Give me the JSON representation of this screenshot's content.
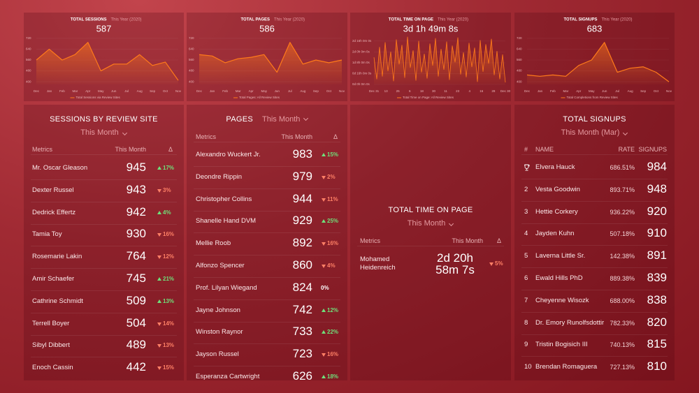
{
  "charts": [
    {
      "title": "TOTAL SESSIONS",
      "subtitle": "This Year (2020)",
      "value": 587,
      "color": "#ff7a1a",
      "ylim": [
        380,
        740
      ],
      "yticks": [
        400,
        480,
        560,
        640,
        720
      ],
      "xlabels": [
        "Dec",
        "Jan",
        "Feb",
        "Mar",
        "Apr",
        "May",
        "Jun",
        "Jul",
        "Aug",
        "Sep",
        "Oct",
        "Nov"
      ],
      "values": [
        560,
        640,
        560,
        600,
        690,
        480,
        530,
        530,
        600,
        520,
        545,
        410
      ],
      "legend": "Total Sessions via Review Sites"
    },
    {
      "title": "TOTAL PAGES",
      "subtitle": "This Year (2020)",
      "value": 586,
      "color": "#ff7a1a",
      "ylim": [
        380,
        740
      ],
      "yticks": [
        400,
        480,
        560,
        640,
        720
      ],
      "xlabels": [
        "Dec",
        "Jan",
        "Feb",
        "Mar",
        "Apr",
        "May",
        "Jun",
        "Jul",
        "Aug",
        "Sep",
        "Oct",
        "Nov"
      ],
      "values": [
        600,
        590,
        540,
        570,
        580,
        600,
        470,
        690,
        530,
        560,
        540,
        560
      ],
      "legend": "Total Pages: All Review Sites"
    },
    {
      "title": "TOTAL TIME ON PAGE",
      "subtitle": "This Year (2020)",
      "value": "3d 1h 49m 8s",
      "color": "#ff7a1a",
      "ylim": [
        0,
        72
      ],
      "yticks": [
        {
          "value": 0,
          "label": "0d 0h 0m 0s"
        },
        {
          "value": 16,
          "label": "0d 16h 0m 0s"
        },
        {
          "value": 32,
          "label": "1d 8h 0m 0s"
        },
        {
          "value": 48,
          "label": "2d 0h 0m 0s"
        },
        {
          "value": 64,
          "label": "2d 16h 0m 0s"
        }
      ],
      "xlabels": [
        "Dec 31",
        "13",
        "25",
        "6",
        "18",
        "30",
        "11",
        "23",
        "4",
        "16",
        "28",
        "Dec 30"
      ],
      "values": [
        40,
        8,
        55,
        12,
        62,
        20,
        48,
        5,
        66,
        30,
        58,
        10,
        70,
        25,
        50,
        6,
        64,
        18,
        45,
        9,
        60,
        28,
        68,
        12,
        52,
        22,
        63,
        7,
        57,
        33,
        69,
        15,
        47,
        11,
        61,
        26,
        54,
        4,
        65,
        19,
        59,
        31,
        67,
        14,
        49,
        8,
        44,
        3
      ],
      "legend": "Total Time on Page: All Review Sites"
    },
    {
      "title": "TOTAL SIGNUPS",
      "subtitle": "This Year (2020)",
      "value": 683,
      "color": "#ff7a1a",
      "ylim": [
        380,
        740
      ],
      "yticks": [
        400,
        480,
        560,
        640,
        720
      ],
      "xlabels": [
        "Dec",
        "Jan",
        "Feb",
        "Mar",
        "Apr",
        "May",
        "Jun",
        "Jul",
        "Aug",
        "Sep",
        "Oct",
        "Nov"
      ],
      "values": [
        450,
        440,
        450,
        440,
        520,
        560,
        690,
        470,
        500,
        510,
        470,
        400
      ],
      "legend": "Total Completions from Review Sites"
    }
  ],
  "sessions_table": {
    "title": "SESSIONS BY REVIEW SITE",
    "period": "This Month",
    "headers": [
      "Metrics",
      "This Month",
      "Δ"
    ],
    "rows": [
      {
        "name": "Mr. Oscar Gleason",
        "value": 945,
        "change": "17%",
        "trend": "up"
      },
      {
        "name": "Dexter Russel",
        "value": 943,
        "change": "3%",
        "trend": "down"
      },
      {
        "name": "Dedrick Effertz",
        "value": 942,
        "change": "4%",
        "trend": "up"
      },
      {
        "name": "Tamia Toy",
        "value": 930,
        "change": "16%",
        "trend": "down"
      },
      {
        "name": "Rosemarie Lakin",
        "value": 764,
        "change": "12%",
        "trend": "down"
      },
      {
        "name": "Amir Schaefer",
        "value": 745,
        "change": "21%",
        "trend": "up"
      },
      {
        "name": "Cathrine Schmidt",
        "value": 509,
        "change": "13%",
        "trend": "up"
      },
      {
        "name": "Terrell Boyer",
        "value": 504,
        "change": "14%",
        "trend": "down"
      },
      {
        "name": "Sibyl Dibbert",
        "value": 489,
        "change": "13%",
        "trend": "down"
      },
      {
        "name": "Enoch Cassin",
        "value": 442,
        "change": "15%",
        "trend": "down"
      }
    ]
  },
  "pages_table": {
    "title": "PAGES",
    "period": "This Month",
    "headers": [
      "Metrics",
      "This Month",
      "Δ"
    ],
    "rows": [
      {
        "name": "Alexandro Wuckert Jr.",
        "value": 983,
        "change": "15%",
        "trend": "up"
      },
      {
        "name": "Deondre Rippin",
        "value": 979,
        "change": "2%",
        "trend": "down"
      },
      {
        "name": "Christopher Collins",
        "value": 944,
        "change": "11%",
        "trend": "down"
      },
      {
        "name": "Shanelle Hand DVM",
        "value": 929,
        "change": "25%",
        "trend": "up"
      },
      {
        "name": "Mellie Roob",
        "value": 892,
        "change": "16%",
        "trend": "down"
      },
      {
        "name": "Alfonzo Spencer",
        "value": 860,
        "change": "4%",
        "trend": "down"
      },
      {
        "name": "Prof. Lilyan Wiegand",
        "value": 824,
        "change": "0%",
        "trend": "flat"
      },
      {
        "name": "Jayne Johnson",
        "value": 742,
        "change": "12%",
        "trend": "up"
      },
      {
        "name": "Winston Raynor",
        "value": 733,
        "change": "22%",
        "trend": "up"
      },
      {
        "name": "Jayson Russel",
        "value": 723,
        "change": "16%",
        "trend": "down"
      },
      {
        "name": "Esperanza Cartwright",
        "value": 626,
        "change": "18%",
        "trend": "up"
      }
    ]
  },
  "time_table": {
    "title": "TOTAL TIME ON PAGE",
    "period": "This Month",
    "headers": [
      "Metrics",
      "This Month",
      "Δ"
    ],
    "rows": [
      {
        "name": "Mohamed Heidenreich",
        "value": "2d 20h 58m 7s",
        "change": "5%",
        "trend": "down"
      }
    ]
  },
  "signups_table": {
    "title": "TOTAL SIGNUPS",
    "period": "This Month (Mar)",
    "headers": [
      "#",
      "NAME",
      "RATE",
      "SIGNUPS"
    ],
    "rows": [
      {
        "name": "Elvera Hauck",
        "rate": "686.51%",
        "signups": 984
      },
      {
        "rank": 2,
        "name": "Vesta Goodwin",
        "rate": "893.71%",
        "signups": 948
      },
      {
        "rank": 3,
        "name": "Hettie Corkery",
        "rate": "936.22%",
        "signups": 920
      },
      {
        "rank": 4,
        "name": "Jayden Kuhn",
        "rate": "507.18%",
        "signups": 910
      },
      {
        "rank": 5,
        "name": "Laverna Little Sr.",
        "rate": "142.38%",
        "signups": 891
      },
      {
        "rank": 6,
        "name": "Ewald Hills PhD",
        "rate": "889.38%",
        "signups": 839
      },
      {
        "rank": 7,
        "name": "Cheyenne Wisozk",
        "rate": "688.00%",
        "signups": 838
      },
      {
        "rank": 8,
        "name": "Dr. Emory Runolfsdottir",
        "rate": "782.33%",
        "signups": 820
      },
      {
        "rank": 9,
        "name": "Tristin Bogisich III",
        "rate": "740.13%",
        "signups": 815
      },
      {
        "rank": 10,
        "name": "Brendan Romaguera",
        "rate": "727.13%",
        "signups": 810
      }
    ]
  }
}
